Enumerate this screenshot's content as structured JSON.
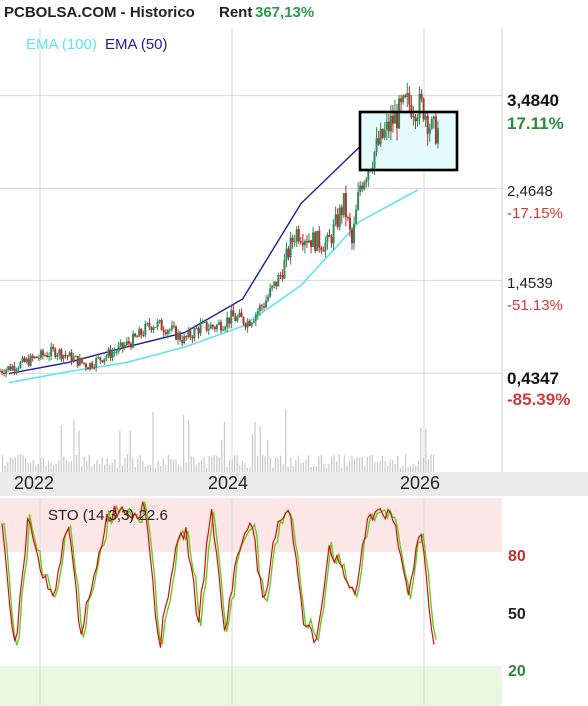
{
  "header": {
    "title": "PCBOLSA.COM - Historico",
    "rent_label": "Rent",
    "rent_value": "367,13%"
  },
  "legend": [
    {
      "label": "EMA (100)",
      "color": "#5ee6ee"
    },
    {
      "label": "EMA (50)",
      "color": "#1d1d9a"
    }
  ],
  "price_axis": [
    {
      "price": "3,4840",
      "pct": "17.11%",
      "pct_color": "#2a8a3a",
      "bold": true
    },
    {
      "price": "2,4648",
      "pct": "-17.15%",
      "pct_color": "#d03a3a",
      "bold": false
    },
    {
      "price": "1,4539",
      "pct": "-51.13%",
      "pct_color": "#d03a3a",
      "bold": false
    },
    {
      "price": "0,4347",
      "pct": "-85.39%",
      "pct_color": "#d03a3a",
      "bold": true
    }
  ],
  "years": [
    "2022",
    "2024",
    "2026"
  ],
  "sto": {
    "label": "STO (14,3,3) 22.6",
    "levels": [
      "80",
      "50",
      "20"
    ]
  },
  "colors": {
    "up": "#2e8b57",
    "down": "#b03030",
    "ema100": "#5ee6ee",
    "ema50": "#1d1d9a",
    "sto_k": "#d01010",
    "sto_d": "#66cc22",
    "overbought_zone": "#fde6e6",
    "oversold_zone": "#e8f8e3",
    "highlight": "#e6fbfb"
  },
  "chart_data": [
    {
      "type": "candlestick",
      "title": "PCBOLSA.COM - Historico",
      "x_range": [
        "2021-08",
        "2026-03"
      ],
      "x_ticks": [
        "2022",
        "2024",
        "2026"
      ],
      "y_ticks": [
        0.4347,
        1.4539,
        2.4648,
        3.484
      ],
      "ylim": [
        0.25,
        3.7
      ],
      "close_path": [
        [
          "2021-08",
          0.46
        ],
        [
          "2021-11",
          0.55
        ],
        [
          "2022-01",
          0.62
        ],
        [
          "2022-03",
          0.68
        ],
        [
          "2022-05",
          0.6
        ],
        [
          "2022-07",
          0.52
        ],
        [
          "2022-09",
          0.62
        ],
        [
          "2022-11",
          0.7
        ],
        [
          "2023-01",
          0.82
        ],
        [
          "2023-03",
          0.98
        ],
        [
          "2023-05",
          0.93
        ],
        [
          "2023-07",
          0.8
        ],
        [
          "2023-09",
          0.94
        ],
        [
          "2023-11",
          0.95
        ],
        [
          "2024-01",
          1.05
        ],
        [
          "2024-03",
          1.0
        ],
        [
          "2024-05",
          1.2
        ],
        [
          "2024-07",
          1.5
        ],
        [
          "2024-09",
          2.0
        ],
        [
          "2024-11",
          1.9
        ],
        [
          "2025-01",
          1.85
        ],
        [
          "2025-03",
          2.3
        ],
        [
          "2025-04",
          1.85
        ],
        [
          "2025-05",
          2.5
        ],
        [
          "2025-06",
          2.7
        ],
        [
          "2025-07",
          2.9
        ],
        [
          "2025-09",
          3.2
        ],
        [
          "2025-11",
          3.4
        ],
        [
          "2026-01",
          3.35
        ],
        [
          "2026-02",
          3.1
        ]
      ],
      "series": [
        {
          "name": "EMA (100)",
          "values": [
            [
              0.33,
              0.33
            ],
            [
              0.45,
              0.45
            ],
            [
              0.55,
              0.55
            ],
            [
              0.72,
              0.72
            ],
            [
              0.95,
              0.95
            ],
            [
              1.4,
              1.4
            ],
            [
              2.1,
              2.1
            ],
            [
              2.45,
              2.45
            ]
          ]
        },
        {
          "name": "EMA (50)",
          "values": [
            [
              0.43,
              0.43
            ],
            [
              0.55,
              0.55
            ],
            [
              0.72,
              0.72
            ],
            [
              0.88,
              0.88
            ],
            [
              1.25,
              1.25
            ],
            [
              2.3,
              2.3
            ],
            [
              2.92,
              2.92
            ],
            [
              3.1,
              3.1
            ]
          ]
        }
      ]
    },
    {
      "type": "line",
      "title": "STO (14,3,3) 22.6",
      "ylim": [
        0,
        100
      ],
      "y_ticks": [
        20,
        50,
        80
      ],
      "series": [
        {
          "name": "STO (14,3,3)",
          "values": [
            85,
            20,
            90,
            60,
            45,
            90,
            30,
            55,
            90,
            95,
            92,
            95,
            20,
            65,
            85,
            35,
            95,
            30,
            70,
            92,
            40,
            88,
            95,
            35,
            25,
            75,
            60,
            50,
            90,
            95,
            85,
            50,
            85,
            22
          ]
        }
      ]
    }
  ]
}
